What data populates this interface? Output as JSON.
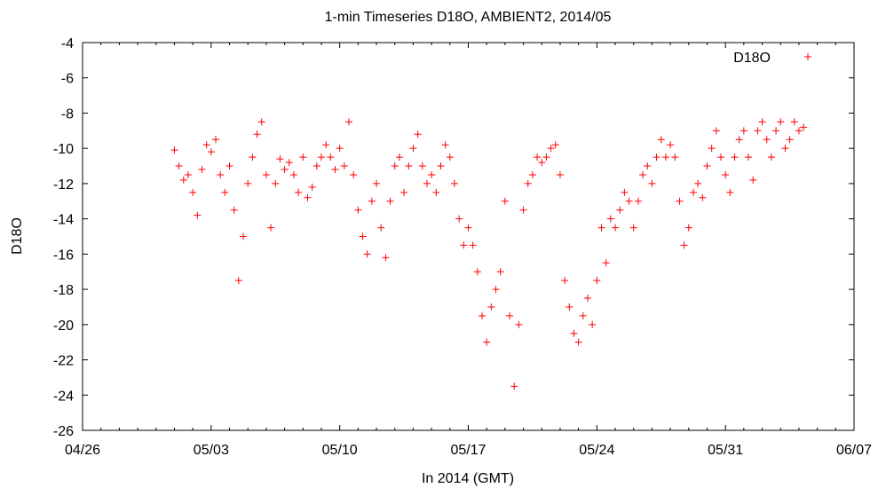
{
  "chart_data": {
    "type": "scatter",
    "title": "1-min Timeseries D18O, AMBIENT2, 2014/05",
    "xlabel": "In 2014 (GMT)",
    "ylabel": "D18O",
    "xlim": [
      "2014-04-26",
      "2014-06-07"
    ],
    "ylim": [
      -26,
      -4
    ],
    "xticks": [
      "04/26",
      "05/03",
      "05/10",
      "05/17",
      "05/24",
      "05/31",
      "06/07"
    ],
    "yticks": [
      -26,
      -24,
      -22,
      -20,
      -18,
      -16,
      -14,
      -12,
      -10,
      -8,
      -6,
      -4
    ],
    "grid": false,
    "legend_position": "top-right",
    "marker": "plus",
    "series": [
      {
        "name": "D18O",
        "color": "#ff0000",
        "points": [
          [
            "2014-05-01T00:00",
            -10.1
          ],
          [
            "2014-05-01T06:00",
            -11.0
          ],
          [
            "2014-05-01T12:00",
            -11.8
          ],
          [
            "2014-05-01T18:00",
            -11.5
          ],
          [
            "2014-05-02T00:00",
            -12.5
          ],
          [
            "2014-05-02T06:00",
            -13.8
          ],
          [
            "2014-05-02T12:00",
            -11.2
          ],
          [
            "2014-05-02T18:00",
            -9.8
          ],
          [
            "2014-05-03T00:00",
            -10.2
          ],
          [
            "2014-05-03T06:00",
            -9.5
          ],
          [
            "2014-05-03T12:00",
            -11.5
          ],
          [
            "2014-05-03T18:00",
            -12.5
          ],
          [
            "2014-05-04T00:00",
            -11.0
          ],
          [
            "2014-05-04T06:00",
            -13.5
          ],
          [
            "2014-05-04T12:00",
            -17.5
          ],
          [
            "2014-05-04T18:00",
            -15.0
          ],
          [
            "2014-05-05T00:00",
            -12.0
          ],
          [
            "2014-05-05T06:00",
            -10.5
          ],
          [
            "2014-05-05T12:00",
            -9.2
          ],
          [
            "2014-05-05T18:00",
            -8.5
          ],
          [
            "2014-05-06T00:00",
            -11.5
          ],
          [
            "2014-05-06T06:00",
            -14.5
          ],
          [
            "2014-05-06T12:00",
            -12.0
          ],
          [
            "2014-05-06T18:00",
            -10.6
          ],
          [
            "2014-05-07T00:00",
            -11.2
          ],
          [
            "2014-05-07T06:00",
            -10.8
          ],
          [
            "2014-05-07T12:00",
            -11.5
          ],
          [
            "2014-05-07T18:00",
            -12.5
          ],
          [
            "2014-05-08T00:00",
            -10.5
          ],
          [
            "2014-05-08T06:00",
            -12.8
          ],
          [
            "2014-05-08T12:00",
            -12.2
          ],
          [
            "2014-05-08T18:00",
            -11.0
          ],
          [
            "2014-05-09T00:00",
            -10.5
          ],
          [
            "2014-05-09T06:00",
            -9.8
          ],
          [
            "2014-05-09T12:00",
            -10.5
          ],
          [
            "2014-05-09T18:00",
            -11.2
          ],
          [
            "2014-05-10T00:00",
            -10.0
          ],
          [
            "2014-05-10T06:00",
            -11.0
          ],
          [
            "2014-05-10T12:00",
            -8.5
          ],
          [
            "2014-05-10T18:00",
            -11.5
          ],
          [
            "2014-05-11T00:00",
            -13.5
          ],
          [
            "2014-05-11T06:00",
            -15.0
          ],
          [
            "2014-05-11T12:00",
            -16.0
          ],
          [
            "2014-05-11T18:00",
            -13.0
          ],
          [
            "2014-05-12T00:00",
            -12.0
          ],
          [
            "2014-05-12T06:00",
            -14.5
          ],
          [
            "2014-05-12T12:00",
            -16.2
          ],
          [
            "2014-05-12T18:00",
            -13.0
          ],
          [
            "2014-05-13T00:00",
            -11.0
          ],
          [
            "2014-05-13T06:00",
            -10.5
          ],
          [
            "2014-05-13T12:00",
            -12.5
          ],
          [
            "2014-05-13T18:00",
            -11.0
          ],
          [
            "2014-05-14T00:00",
            -10.0
          ],
          [
            "2014-05-14T06:00",
            -9.2
          ],
          [
            "2014-05-14T12:00",
            -11.0
          ],
          [
            "2014-05-14T18:00",
            -12.0
          ],
          [
            "2014-05-15T00:00",
            -11.5
          ],
          [
            "2014-05-15T06:00",
            -12.5
          ],
          [
            "2014-05-15T12:00",
            -11.0
          ],
          [
            "2014-05-15T18:00",
            -9.8
          ],
          [
            "2014-05-16T00:00",
            -10.5
          ],
          [
            "2014-05-16T06:00",
            -12.0
          ],
          [
            "2014-05-16T12:00",
            -14.0
          ],
          [
            "2014-05-16T18:00",
            -15.5
          ],
          [
            "2014-05-17T00:00",
            -14.5
          ],
          [
            "2014-05-17T06:00",
            -15.5
          ],
          [
            "2014-05-17T12:00",
            -17.0
          ],
          [
            "2014-05-17T18:00",
            -19.5
          ],
          [
            "2014-05-18T00:00",
            -21.0
          ],
          [
            "2014-05-18T06:00",
            -19.0
          ],
          [
            "2014-05-18T12:00",
            -18.0
          ],
          [
            "2014-05-18T18:00",
            -17.0
          ],
          [
            "2014-05-19T00:00",
            -13.0
          ],
          [
            "2014-05-19T06:00",
            -19.5
          ],
          [
            "2014-05-19T12:00",
            -23.5
          ],
          [
            "2014-05-19T18:00",
            -20.0
          ],
          [
            "2014-05-20T00:00",
            -13.5
          ],
          [
            "2014-05-20T06:00",
            -12.0
          ],
          [
            "2014-05-20T12:00",
            -11.5
          ],
          [
            "2014-05-20T18:00",
            -10.5
          ],
          [
            "2014-05-21T00:00",
            -10.8
          ],
          [
            "2014-05-21T06:00",
            -10.5
          ],
          [
            "2014-05-21T12:00",
            -10.0
          ],
          [
            "2014-05-21T18:00",
            -9.8
          ],
          [
            "2014-05-22T00:00",
            -11.5
          ],
          [
            "2014-05-22T06:00",
            -17.5
          ],
          [
            "2014-05-22T12:00",
            -19.0
          ],
          [
            "2014-05-22T18:00",
            -20.5
          ],
          [
            "2014-05-23T00:00",
            -21.0
          ],
          [
            "2014-05-23T06:00",
            -19.5
          ],
          [
            "2014-05-23T12:00",
            -18.5
          ],
          [
            "2014-05-23T18:00",
            -20.0
          ],
          [
            "2014-05-24T00:00",
            -17.5
          ],
          [
            "2014-05-24T06:00",
            -14.5
          ],
          [
            "2014-05-24T12:00",
            -16.5
          ],
          [
            "2014-05-24T18:00",
            -14.0
          ],
          [
            "2014-05-25T00:00",
            -14.5
          ],
          [
            "2014-05-25T06:00",
            -13.5
          ],
          [
            "2014-05-25T12:00",
            -12.5
          ],
          [
            "2014-05-25T18:00",
            -13.0
          ],
          [
            "2014-05-26T00:00",
            -14.5
          ],
          [
            "2014-05-26T06:00",
            -13.0
          ],
          [
            "2014-05-26T12:00",
            -11.5
          ],
          [
            "2014-05-26T18:00",
            -11.0
          ],
          [
            "2014-05-27T00:00",
            -12.0
          ],
          [
            "2014-05-27T06:00",
            -10.5
          ],
          [
            "2014-05-27T12:00",
            -9.5
          ],
          [
            "2014-05-27T18:00",
            -10.5
          ],
          [
            "2014-05-28T00:00",
            -9.8
          ],
          [
            "2014-05-28T06:00",
            -10.5
          ],
          [
            "2014-05-28T12:00",
            -13.0
          ],
          [
            "2014-05-28T18:00",
            -15.5
          ],
          [
            "2014-05-29T00:00",
            -14.5
          ],
          [
            "2014-05-29T06:00",
            -12.5
          ],
          [
            "2014-05-29T12:00",
            -12.0
          ],
          [
            "2014-05-29T18:00",
            -12.8
          ],
          [
            "2014-05-30T00:00",
            -11.0
          ],
          [
            "2014-05-30T06:00",
            -10.0
          ],
          [
            "2014-05-30T12:00",
            -9.0
          ],
          [
            "2014-05-30T18:00",
            -10.5
          ],
          [
            "2014-05-31T00:00",
            -11.5
          ],
          [
            "2014-05-31T06:00",
            -12.5
          ],
          [
            "2014-05-31T12:00",
            -10.5
          ],
          [
            "2014-05-31T18:00",
            -9.5
          ],
          [
            "2014-06-01T00:00",
            -9.0
          ],
          [
            "2014-06-01T06:00",
            -10.5
          ],
          [
            "2014-06-01T12:00",
            -11.8
          ],
          [
            "2014-06-01T18:00",
            -9.0
          ],
          [
            "2014-06-02T00:00",
            -8.5
          ],
          [
            "2014-06-02T06:00",
            -9.5
          ],
          [
            "2014-06-02T12:00",
            -10.5
          ],
          [
            "2014-06-02T18:00",
            -9.0
          ],
          [
            "2014-06-03T00:00",
            -8.5
          ],
          [
            "2014-06-03T06:00",
            -10.0
          ],
          [
            "2014-06-03T12:00",
            -9.5
          ],
          [
            "2014-06-03T18:00",
            -8.5
          ],
          [
            "2014-06-04T00:00",
            -9.0
          ],
          [
            "2014-06-04T06:00",
            -8.8
          ]
        ]
      }
    ]
  }
}
